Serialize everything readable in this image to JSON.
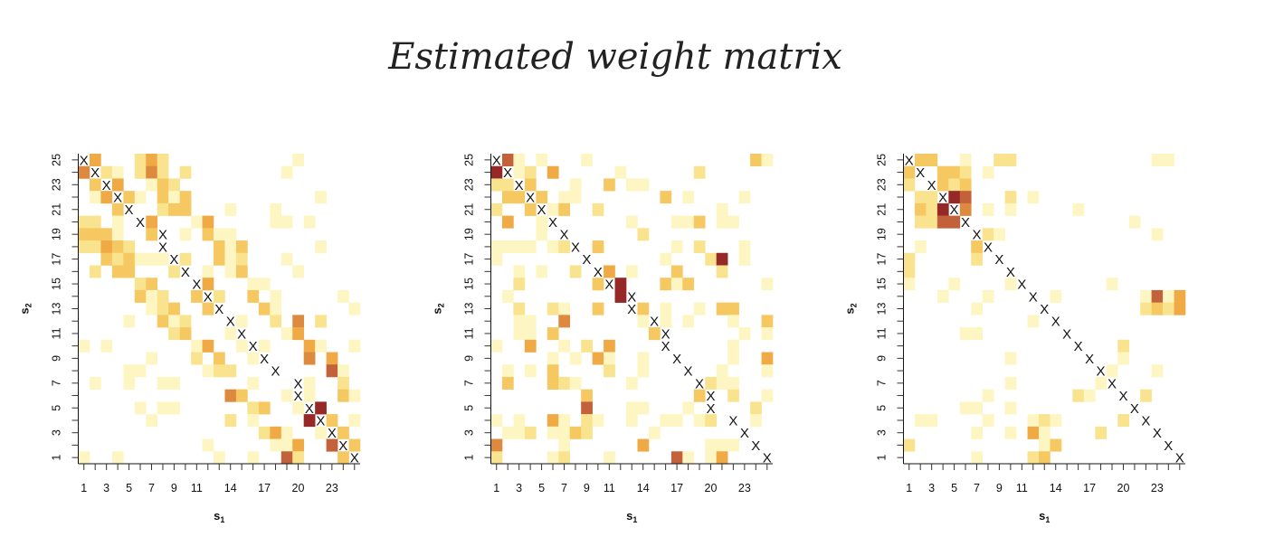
{
  "title": "Estimated weight matrix",
  "color_scale": {
    "0": "#FFFFFF",
    "1": "#FDF6C2",
    "2": "#FAE38E",
    "3": "#F6C862",
    "4": "#F0AA45",
    "5": "#DE8A3E",
    "6": "#C3613A",
    "7": "#962828"
  },
  "diagonal_marker": "X",
  "chart_data": [
    {
      "type": "heatmap",
      "xlabel": "s",
      "xlabel_sub": "1",
      "ylabel": "s",
      "ylabel_sub": "2",
      "x_ticks": [
        "1",
        "3",
        "5",
        "7",
        "9",
        "11",
        "14",
        "17",
        "20",
        "23"
      ],
      "x_tick_cols": [
        1,
        3,
        5,
        7,
        9,
        11,
        14,
        17,
        20,
        23
      ],
      "y_ticks": [
        "1",
        "3",
        "5",
        "7",
        "9",
        "11",
        "13",
        "15",
        "17",
        "19",
        "21",
        "23",
        "25"
      ],
      "y_tick_rows": [
        1,
        3,
        5,
        7,
        9,
        11,
        13,
        15,
        17,
        19,
        21,
        23,
        25
      ],
      "matrix_rows_top_to_bottom": [
        "X400024200000000000100000",
        "5X21025202000000001000000",
        "03X4001320000000000000000",
        "014X31031300000000000100",
        "0003X002330001000100000000",
        "22010X400014000001101000 0",
        "333100 3X0103110000000000000",
        "2243200X000031300000010000",
        "00323111X2003120001000000",
        "020330002X0101300001000000",
        "0000023000X40001100000000",
        "00000312003X2003010000010",
        "0000001230 03X000310000001",
        "000010031200 0X1002050200 0",
        "00000000230001X0001400000",
        "1010000000140 01X100041001",
        "0000001000203001X00050400",
        "000011000001220 00X0000610",
        "010010011000000 1000X100204",
        "00000000000005300 01X10031",
        "0000010110000002300 1X7000",
        "0000001000000201000 07X301",
        "000000000000000024100 1X30",
        "0000000000010000 0114006X3",
        "1001000000001001006200 03X"
      ]
    },
    {
      "type": "heatmap",
      "xlabel": "s",
      "xlabel_sub": "1",
      "ylabel": "s",
      "ylabel_sub": "2",
      "x_ticks": [
        "1",
        "3",
        "5",
        "7",
        "9",
        "11",
        "14",
        "17",
        "20",
        "23"
      ],
      "x_tick_cols": [
        1,
        3,
        5,
        7,
        9,
        11,
        14,
        17,
        20,
        23
      ],
      "y_ticks": [
        "1",
        "3",
        "5",
        "7",
        "9",
        "11",
        "13",
        "15",
        "17",
        "19",
        "21",
        "23",
        "25"
      ],
      "y_tick_rows": [
        1,
        3,
        5,
        7,
        9,
        11,
        13,
        15,
        17,
        19,
        21,
        23,
        25
      ],
      "matrix_rows_top_to_bottom": [
        "X610100010000000000000031",
        "7X12040000010000002000000",
        "22X3000100301100000000000",
        "033X3011000000030100 00100",
        "2003X130020000000000 10000",
        "04001X000000100011301100 0",
        "000010X00000020000000000 0",
        "1111012X030000001020 00100",
        "10000000X00000010002701 00",
        "001010020X4010003000200 00",
        "0020000003X700031300000 01",
        "010000000007X000000000000",
        "0020021003 00X30100103300 0",
        "00110050000001X101000100 30",
        "001103000000003X000000101",
        "1004001020400 00X000001000",
        "0000010104100100X00001004",
        "010103000020010 00X0010001",
        "0300032100001000 00X211000",
        "0000000030000000003X02001",
        "0000000060001100010X0002",
        "1010041021001001101 20X010",
        "0112011320000010000000X00",
        "50000010000 0040000011 10X0",
        "200001200010000061014000X"
      ]
    },
    {
      "type": "heatmap",
      "xlabel": "s",
      "xlabel_sub": "1",
      "ylabel": "s",
      "ylabel_sub": "2",
      "x_ticks": [
        "1",
        "3",
        "5",
        "7",
        "9",
        "11",
        "14",
        "17",
        "20",
        "23"
      ],
      "x_tick_cols": [
        1,
        3,
        5,
        7,
        9,
        11,
        14,
        17,
        20,
        23
      ],
      "y_ticks": [
        "1",
        "3",
        "5",
        "7",
        "9",
        "11",
        "13",
        "15",
        "17",
        "19",
        "21",
        "23",
        "25"
      ],
      "y_tick_rows": [
        1,
        3,
        5,
        7,
        9,
        11,
        13,
        15,
        17,
        19,
        21,
        23,
        25
      ],
      "matrix_rows_top_to_bottom": [
        "X330010022000000000000110",
        "3X033201000000000000000 00",
        "20X3230000000000000000000",
        "022X7600020100000000000000",
        "0327X501010000010000000000",
        "02266X000000000000001000 0",
        "000000X2100000000000 00100",
        "0100003X00000000000000000",
        "2000002 0X0000000000000000",
        "200000000X000000000000000",
        "1000100001X00000001000000",
        "00010001000X0100000001614",
        "00000010000 0X0000000 02324",
        "0000000000010X00000000000",
        "00000110000000X0000000000",
        "000000000000000X000200000",
        "000000000100000 0X00100000",
        "00000000000000000X1000100",
        "0000000001000000 01X000000",
        "00000001000000021 00X02000",
        "0000011001000000000 0X0000",
        "01100001000121000002 0X000",
        "00000010010410000200 00X00",
        "2000000000001300000000 0X0",
        "00000010000230000000 0000X"
      ]
    }
  ]
}
